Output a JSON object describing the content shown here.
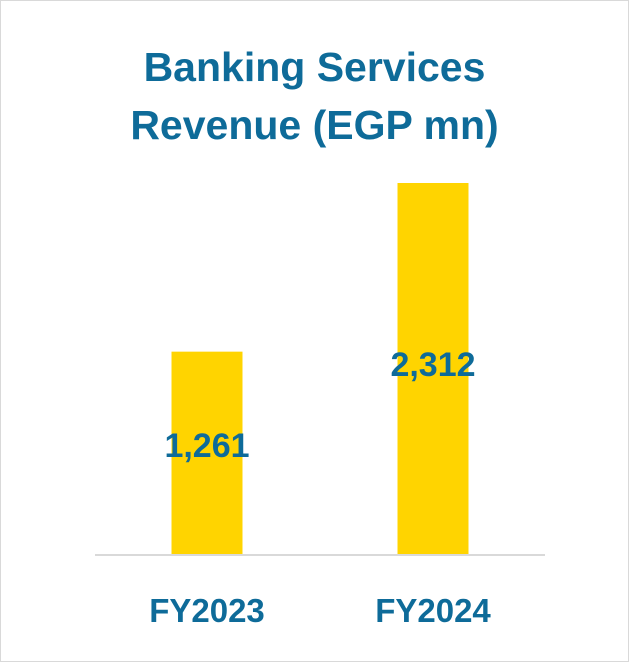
{
  "chart_data": {
    "type": "bar",
    "title_lines": [
      "Banking Services",
      "Revenue (EGP mn)"
    ],
    "categories": [
      "FY2023",
      "FY2024"
    ],
    "values": [
      1261,
      2312
    ],
    "value_labels": [
      "1,261",
      "2,312"
    ],
    "xlabel": "",
    "ylabel": "",
    "ylim": [
      0,
      2312
    ],
    "grid": false,
    "legend": "none",
    "colors": {
      "bar": "#ffd400",
      "text": "#0e6b99",
      "axis": "#d9d9d9"
    }
  }
}
